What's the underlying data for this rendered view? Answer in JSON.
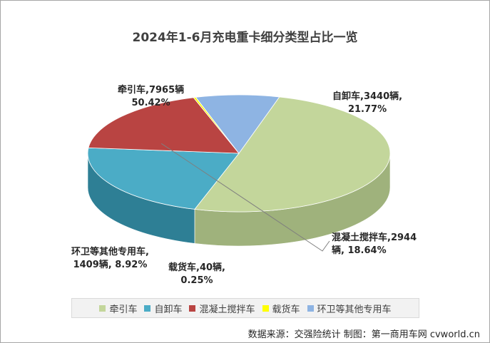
{
  "chart_data": {
    "type": "pie",
    "title": "2024年1-6月充电重卡细分类型占比一览",
    "slices": [
      {
        "name": "牵引车",
        "value": 7965,
        "percent": 50.42,
        "color": "#c3d69b",
        "side": "#9fb27c",
        "label_line1": "牵引车,7965辆",
        "label_line2": "50.42%"
      },
      {
        "name": "自卸车",
        "value": 3440,
        "percent": 21.77,
        "color": "#4bacc6",
        "side": "#2e7f95",
        "label_line1": "自卸车,3440辆,",
        "label_line2": "21.77%"
      },
      {
        "name": "混凝土搅拌车",
        "value": 2944,
        "percent": 18.64,
        "color": "#b94442",
        "side": "#6e1f1d",
        "label_line1": "混凝土搅拌车,2944",
        "label_line2": "辆, 18.64%"
      },
      {
        "name": "载货车",
        "value": 40,
        "percent": 0.25,
        "color": "#ffff00",
        "side": "#c8c800",
        "label_line1": "载货车,40辆,",
        "label_line2": "0.25%"
      },
      {
        "name": "环卫等其他专用车",
        "value": 1409,
        "percent": 8.92,
        "color": "#8eb4e3",
        "side": "#5d7fb0",
        "label_line1": "环卫等其他专用车,",
        "label_line2": "1409辆, 8.92%"
      }
    ],
    "legend_position": "bottom"
  },
  "source_text": "数据来源：交强险统计  制图：第一商用车网 cvworld.cn"
}
